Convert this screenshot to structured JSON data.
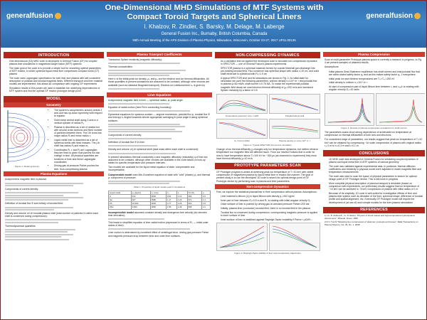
{
  "header": {
    "logo_text": "generalfusion",
    "title_line1": "One-Dimensional MHD Simulations of MTF Systems with",
    "title_line2": "Compact Toroid Targets and Spherical Liners",
    "authors": "I. Khalzov, R. Zindler, S. Barsky, M. Delage, M. Laberge",
    "affiliation": "General Fusion Inc., Burnaby, British Columbia, Canada",
    "conference": "59th Annual Meeting of the APS Division of Plasma Physics, Milwaukee, Wisconsin, October 23-27, 2017   UP11.00136"
  },
  "intro": {
    "title": "INTRODUCTION",
    "bullets": [
      "One-dimensional (1D) MHD code is developed in General Fusion (GF) for coupled plasma-liner simulations in magnetized target fusion (MTF) systems",
      "The main goal of the code is to provide a simple tool for searching optimal parameters of MTF reactor, in which spherical liquid metal liner compresses compact toroid (CT) plasma",
      "The code uses Lagrangian specification for both liner and plasma with self-consistent description of poloidal and toroidal magnetic fields. Different transport and liner material models are implemented; this allows for comparison with ongoing GF experiments",
      "Simulation results in this poster are used to establish the underlying dependencies of MTF system and find the optimal GF reactor prototype design point"
    ]
  },
  "model": {
    "title": "MODEL",
    "geometry_title": "Geometry",
    "geometry_bullets": [
      "The system is axisymmetric around central Z axis and has up-down symmetry with respect to equator",
      "Solid metal central shaft along Z axis is a vertical cylinder of radius R₁",
      "Plasma is described as a set of nested tori with circular cross sections and fixed number of particles between them. The i-th torus has major radius Rᵢ and minor radius rᵢ",
      "Liquid metal liner is described as a set of spherical shells with fixed masses. The j-th shell has radius Rⱼ and mass mⱼ",
      "Coordinates Rᵢ, rᵢ and Rⱼ are Lagrangian; they are fixed to given fluid parcels but can change in time. All physical quantities are functions of time and these Lagrangian coordinates",
      "Driving gas at pressure Pdrive pushes the liner, thus compressing plasma"
    ],
    "figure_caption": "Figure 1. Model geometry",
    "plasma_eq_title": "Plasma Equations",
    "plasma_eq_text": "Axisymmetric magnetic field in plasma:",
    "continuity_label": "Components of current density:",
    "toroidal_label": "Definition of toroidal flux Φ and helicity of toroidal field:",
    "density_label": "Density and volume of i-th toroidal plasma shell (total number of particles Nᵢ within each shell is conserved during compression):",
    "thermo_label": "Thermodynamical quantities:"
  },
  "transport": {
    "title": "Plasma Transport Coefficients",
    "resistivity_label": "Transverse Spitzer resistivity (magnetic diffusivity):",
    "thermal_label": "Thermal conductivities:",
    "note": "Here nᵢ is the initial peak ion density, ρ₀ and μ₀ are the electron and ion thermal diffusivities. All these quantities in present simulations are assumed to be constant, although other choices are available (such as classical Braginskii transport). Electron-ion collisional time τₑᵢ is given by"
  },
  "liner": {
    "title": "Liner Equations",
    "field_label": "Axisymmetric magnetic field in liner — spherical radius, φ: polar angle",
    "eq_label": "Equation of radial motion (here Rk is conducting boundary):",
    "dynamic_text": "Dynamical equations for spacious scalars — angular momentum, poloidal flux ψ, toroidal flux Φ and entropy s. Angled brackets denote appropriate averaging in polar angle θ along spherical surfaces:",
    "comp_label": "Components of current density:",
    "flux_label": "Definition of toroidal flux Φ in liner:",
    "density_text": "Density and volume of j-th spherical shell (total mass within each shell is conserved):",
    "compress_text": "In present simulations thermal conductivity κ and magnetic diffusivity (resistivity) η of liner are assumed to be constant, although other choices are available in the code based on look-up tables for specific temperature and pressure intervals.",
    "models_text": "Two models are available for the liquid metal equation of state: compressible and incompressible.",
    "compressible_label": "Compressible model",
    "compressible_text": "uses Mie-Gruneisen equation of state with \"cold\" (elastic) ρ₀ and thermal ρₜ component of pressure:",
    "table_caption": "Table 1. Properties of liquid metals used in simulations",
    "table_headers": [
      "Liquid metal",
      "ρ₀ (kg/m³)",
      "c₀ (m/s)",
      "Γ₀",
      "s",
      "Tm (K)",
      "μ"
    ],
    "table_rows": [
      [
        "Li",
        "512",
        "4500",
        "0.81",
        "1.13",
        "454",
        "2.0"
      ],
      [
        "Na",
        "927",
        "2580",
        "1.17",
        "1.24",
        "371",
        "1.3"
      ],
      [
        "Pb",
        "10,600",
        "2030",
        "2.77",
        "1.29",
        "601",
        "1.8"
      ],
      [
        "PbLi",
        "9,500",
        "1800",
        "1.86",
        "1.38",
        "508",
        "1.6"
      ]
    ],
    "incompressible_label": "Incompressible model",
    "incompressible_text": "assumes constant density and divergence-free velocity (div denotes time derivative):",
    "closing_text": "This leads to simplified equation of liner radial motion (expressed in terms of R₀ — initial outer radius of liner):",
    "final_text": "Liner motion is determined by combined effect of centrifugal force, driving gas pressure Pdrive and magnetic pressure drop between inner and outer liner surfaces."
  },
  "ncomp": {
    "title": "NON-COMPRESSING DYNAMICS",
    "intro": "As a validation test we applied the developed code to simulate non-compression dynamics in SPECTOR — one of General Fusion's plasma experiments",
    "b1": "SPECTOR plasma is a spherical tokamak formed by coaxial Marshall gun discharge into pre-existing toroidal field. Flux conserver has spherical shape with radius r=19 cm, and solid shaft electrode is cylindrical with R₁=1.9 cm",
    "b2": "A typical SPECTOR shot and its simulations are shown in Fig. 2. Its initial state for simulation we used the following parameters: uniform density nᵢ=10²⁰ m⁻³ and poloidal flux in plasma ψ=60 mWb, shaft current I=0.76 MA. To match the experimental poloidal magnetic field decay we used electron thermal diffusivity of χₑ=200 m²/s and increased Spitzer resistivity by a factor of 3.5",
    "fig_captions": [
      "Temperature (electron) core / mWb",
      "Poloidal field at wall",
      "Ip, Current (MA)",
      "Plasma density (n core) 10²⁰ m⁻³"
    ],
    "fig2_caption": "Figure 2. Typical SPECTOR shot and its simulation",
    "change_text": "Change of ion thermal diffusivity χᵢ changes only ion temperature dynamics, but neither electron temperature nor magnetic field are affected much. From our results it follows that in order for ions to have temperature above Tᵢ=100 eV for ~300 μs (as observed in experiment) they must have thermal diffusivity χᵢ<10 m²/s"
  },
  "proto": {
    "title": "PROTOTYPE PARAMETERS SCAN",
    "intro": "GF Prototype program is aimed at achieving peak ion temperature of Tᵢ~10 keV with visible compression of magnetized plasma by liquid metal liner in reactor-like manner. The goal of present study is to use the developed 1D code to search for optimal design point of GF Prototype device by performing scan in plasma and liner parameters.",
    "noncomp_title": "Non-compression Dynamics",
    "noncomp_text": "First, we explore the statistical plasma/liner in their compression without plasma. Assumptions:",
    "bullets": [
      "Liner material is lithium (Li) in liquid lithium with density ρ₀=512 kg/m³",
      "Inner part of liner between R₁=0.5 m and R₀ is rotating with initial angular velocity Ω₀",
      "Outer surface of liner is pushed by driving gas at constant pressure Pdrive=200 bar",
      "Initially, plasma-liner (conductor) toroidal field, there is no toroidal field in the plasma",
      "Toroidal flux is conserved during compression, corresponding magnetic pressure is applied to inner surface of liner",
      "Inner surface of liner is stabilized against Rayleigh-Taylor instability if Pdrive < ρΩ²R²..."
    ],
    "fig_caption": "Figure 3. Rayleigh-Taylor stability of liner and compression trajectories"
  },
  "pcomp": {
    "title": "Plasma Compression",
    "intro": "Scan of multi-parameter Prototype-plasma space is currently a research in progress. In Fig. 4 we present samples of obtained results.",
    "assump": "Assumptions:",
    "bullets": [
      "Initial plasma Grad-Shafranov equilibrium has shaft current and total poloidal flux that are within stated safety factor q₀ and as this makes safety factor q₀ 1 everywhere:",
      "Initial peak ion and electron temperatures are Tᵢ₀=Tₑ₀=200 eV",
      "Initial density is uniform n₀=10²⁰ m⁻³",
      "At start of compression part of liquid lithium liner between r₀ and rₛₕₐfₜ is rotating with angular velocity Ω₀=10 rad/s"
    ],
    "fig_caption": "Figure 4. Results of plasma compression simulations for shaft current",
    "discussion": "The parameters scans show strong dependence of achievable ion temperature at compression on thermal diffusivities of both ions and electrons.",
    "discussion2": "For considered range of parameters, our results suggest that peak ion temperature of Tᵢ=10 keV can be obtained by compressing ~1e scale compression of plasma with original radius r₀=1 m to rₖ=0.3 m and rᵢ=0.1 m."
  },
  "concl": {
    "title": "CONCLUSIONS",
    "bullets": [
      "1D MHD code was developed in General Fusion for simulating coupled dynamics of plasma and liquid metal liner in MTF systems of various geometry",
      "The code was validated against experimental data. In particular, thermal diffusion coefficients and resistivity in physical model were adjusted to match magnetic field and temperature measurements",
      "The code was used to scan the space of physical parameters to search for optimal design point of GF Prototype device. This is still work in progress",
      "More complete physical description of plasma transport is desirable (based on comparison with experiments, our preliminary results suggest that ion temperature of ~10 keV can be achieved in ~5 keV compression of plasma with initial radius of 1 m",
      "Because of its simplicity, 1D code is well-suited for investigation effects of liner and plasma-liner system such as deviation of the liner, spherical shape, difference of toroidal profile and spatial alignment, etc. Eventually GF Prototype model will require the development of (at use of) such simple models for the liner-plasma simulations"
    ]
  },
  "refs": {
    "title": "REFERENCES",
    "items": [
      "1) Yu. B. Zeldovich, Yu. P. Raizer. \"Physics of shock waves and high-temperature hydrodynamic phenomena\". Mineola, Dover, 1966",
      "2) P.J. Turchi \"Modeling liner compression of plasmas: concepts and issues\", IEEE Transactions on Plasma Science, Vol. 36, No. 1, 2008"
    ]
  },
  "colors": {
    "header_blue": "#2d6db0",
    "section_red": "#b3261e",
    "curve_red": "#d22a2a",
    "curve_blue": "#2255cc",
    "curve_green": "#21a04a"
  }
}
